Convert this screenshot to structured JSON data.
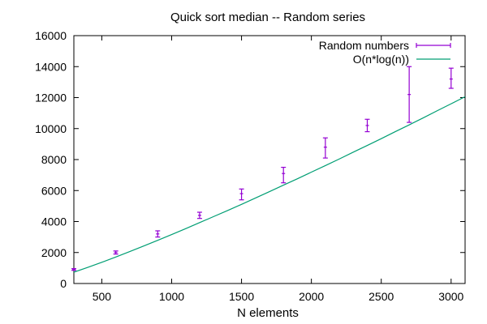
{
  "chart_data": {
    "type": "scatter",
    "title": "Quick sort median -- Random series",
    "xlabel": "N elements",
    "ylabel": "",
    "xlim": [
      300,
      3100
    ],
    "ylim": [
      0,
      16000
    ],
    "xticks": [
      500,
      1000,
      1500,
      2000,
      2500,
      3000
    ],
    "yticks": [
      0,
      2000,
      4000,
      6000,
      8000,
      10000,
      12000,
      14000,
      16000
    ],
    "grid": false,
    "legend_position": "top-right",
    "series": [
      {
        "name": "Random numbers",
        "kind": "errorbar",
        "color": "#9400d3",
        "points": [
          {
            "x": 300,
            "y": 900,
            "ymin": 850,
            "ymax": 960
          },
          {
            "x": 600,
            "y": 2000,
            "ymin": 1900,
            "ymax": 2100
          },
          {
            "x": 900,
            "y": 3200,
            "ymin": 3000,
            "ymax": 3400
          },
          {
            "x": 1200,
            "y": 4400,
            "ymin": 4200,
            "ymax": 4600
          },
          {
            "x": 1500,
            "y": 5800,
            "ymin": 5400,
            "ymax": 6100
          },
          {
            "x": 1800,
            "y": 7100,
            "ymin": 6500,
            "ymax": 7500
          },
          {
            "x": 2100,
            "y": 8800,
            "ymin": 8100,
            "ymax": 9400
          },
          {
            "x": 2400,
            "y": 10200,
            "ymin": 9800,
            "ymax": 10600
          },
          {
            "x": 2700,
            "y": 12200,
            "ymin": 10400,
            "ymax": 14000
          },
          {
            "x": 3000,
            "y": 13200,
            "ymin": 12600,
            "ymax": 13900
          }
        ]
      },
      {
        "name": "O(n*log(n))",
        "kind": "line",
        "color": "#009e73",
        "x": [
          300,
          400,
          500,
          600,
          700,
          800,
          900,
          1000,
          1100,
          1200,
          1300,
          1400,
          1500,
          1600,
          1700,
          1800,
          1900,
          2000,
          2100,
          2200,
          2300,
          2400,
          2500,
          2600,
          2700,
          2800,
          2900,
          3000,
          3100
        ],
        "y": [
          730,
          1040,
          1370,
          1710,
          2060,
          2420,
          2790,
          3160,
          3540,
          3930,
          4320,
          4710,
          5110,
          5520,
          5930,
          6350,
          6760,
          7190,
          7610,
          8040,
          8480,
          8910,
          9350,
          9800,
          10240,
          10690,
          11150,
          11600,
          12060
        ]
      }
    ]
  }
}
